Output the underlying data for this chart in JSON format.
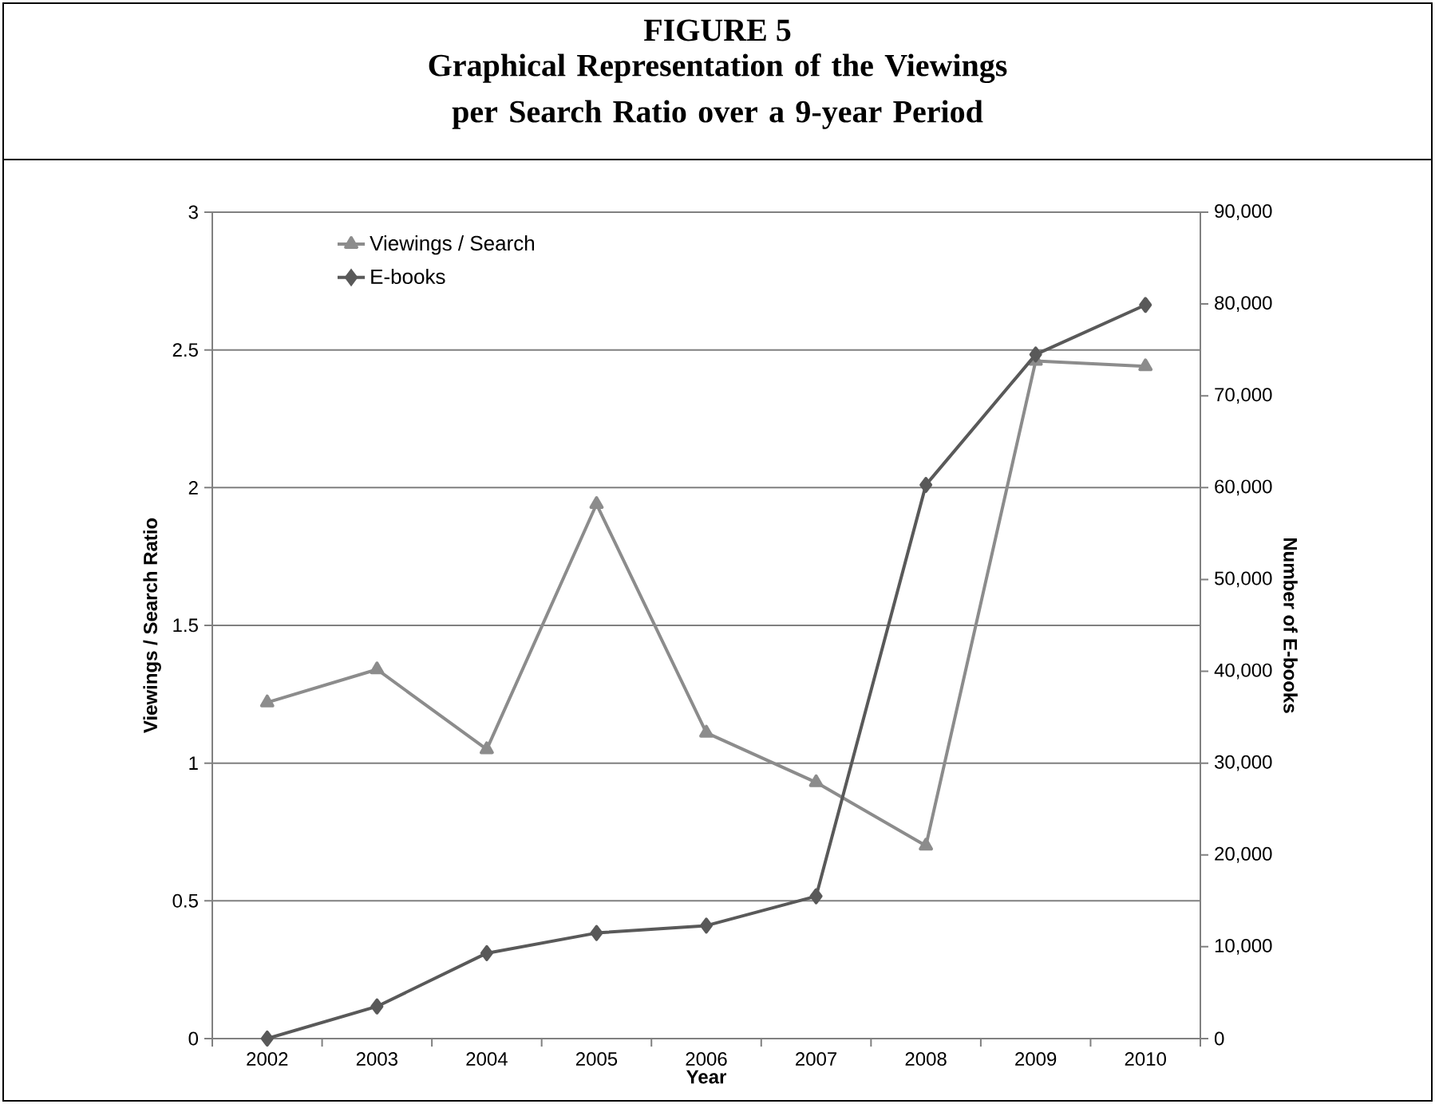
{
  "chart_data": {
    "type": "line",
    "title": "FIGURE 5",
    "subtitle": "Graphical Representation of the Viewings per Search Ratio over a 9-year Period",
    "categories": [
      "2002",
      "2003",
      "2004",
      "2005",
      "2006",
      "2007",
      "2008",
      "2009",
      "2010"
    ],
    "xlabel": "Year",
    "ylabel": "Viewings / Search Ratio",
    "y2label": "Number of E-books",
    "series": [
      {
        "name": "Viewings / Search",
        "color": "#8c8c8c",
        "marker": "triangle",
        "values": [
          1.22,
          1.34,
          1.05,
          1.94,
          1.11,
          0.93,
          0.7,
          2.46,
          2.44
        ]
      },
      {
        "name": "E-books",
        "color": "#595959",
        "marker": "diamond",
        "axis": "y2",
        "values": [
          0,
          3500,
          9300,
          11500,
          12300,
          15500,
          60300,
          74500,
          79900
        ]
      }
    ],
    "ylim": [
      0,
      3
    ],
    "yticks": [
      0,
      0.5,
      1,
      1.5,
      2,
      2.5,
      3
    ],
    "y2lim": [
      0,
      90000
    ],
    "y2ticks": [
      0,
      {
        "value": 10000,
        "label": "10,000"
      },
      {
        "value": 20000,
        "label": "20,000"
      },
      {
        "value": 30000,
        "label": "30,000"
      },
      {
        "value": 40000,
        "label": "40,000"
      },
      {
        "value": 50000,
        "label": "50,000"
      },
      {
        "value": 60000,
        "label": "60,000"
      },
      {
        "value": 70000,
        "label": "70,000"
      },
      {
        "value": 80000,
        "label": "80,000"
      },
      {
        "value": 90000,
        "label": "90,000"
      }
    ],
    "grid": "y",
    "legend": "top left"
  }
}
